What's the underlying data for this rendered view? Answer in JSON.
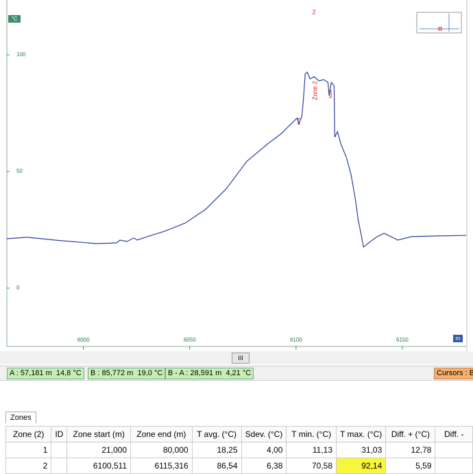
{
  "chart_data": {
    "type": "line",
    "y_unit": "°C",
    "x_unit": "m",
    "zone_marker": "2",
    "annotation": "Zone 2",
    "x": [
      5964,
      5973.7,
      5986.6,
      6005.9,
      6015.6,
      6017.2,
      6020.5,
      6023.7,
      6025.3,
      6030.1,
      6038.2,
      6047.9,
      6057.5,
      6067.2,
      6076.9,
      6086.6,
      6093.0,
      6097.9,
      6100.5,
      6101.4,
      6102.7,
      6103.4,
      6104.3,
      6105.3,
      6106.6,
      6108.5,
      6110.8,
      6113.0,
      6115.0,
      6115.6,
      6116.6,
      6117.9,
      6118.2,
      6119.5,
      6121.1,
      6123.7,
      6125.9,
      6127.9,
      6129.2,
      6130.8,
      6131.7,
      6135.0,
      6138.2,
      6141.4,
      6144.6,
      6147.9,
      6154.3,
      6167.2,
      6180.0
    ],
    "series": [
      {
        "color": "#2f3ea0",
        "values": [
          21.2,
          21.8,
          20.6,
          19.1,
          19.4,
          20.6,
          20.0,
          21.5,
          20.6,
          22.1,
          24.4,
          27.9,
          33.8,
          42.6,
          54.4,
          61.8,
          66.2,
          70.6,
          72.9,
          70.6,
          73.5,
          80.0,
          91.8,
          92.6,
          89.7,
          90.6,
          88.8,
          89.4,
          88.2,
          82.4,
          88.2,
          86.8,
          64.7,
          67.1,
          61.8,
          55.9,
          48.5,
          38.2,
          29.4,
          22.1,
          17.6,
          20.0,
          22.1,
          23.5,
          22.1,
          20.6,
          22.1,
          22.4,
          22.6
        ]
      }
    ],
    "xlim": [
      5964,
      6180
    ],
    "ylim": [
      -23.5,
      123.5
    ],
    "xticks": [
      6000,
      6050,
      6100,
      6150
    ],
    "yticks": [
      0,
      50,
      100
    ]
  },
  "status": {
    "a": "A : 57,181 m  14,8 °C",
    "b": "B : 85,772 m  19,0 °C",
    "ba": "B - A : 28,591 m  4,21 °C",
    "cursors": "Cursors : B"
  },
  "tab": "Zones",
  "table": {
    "headers": [
      "Zone (2)",
      "ID",
      "Zone start (m)",
      "Zone end (m)",
      "T avg. (°C)",
      "Sdev. (°C)",
      "T min. (°C)",
      "T max. (°C)",
      "Diff. + (°C)",
      "Diff. -"
    ],
    "rows": [
      [
        "1",
        null,
        "21,000",
        "80,000",
        "18,25",
        "4,00",
        "11,13",
        "31,03",
        "12,78",
        null
      ],
      [
        "2",
        null,
        "6100,511",
        "6115,316",
        "86,54",
        "6,38",
        "70,58",
        "92,14",
        "5,59",
        null
      ]
    ]
  }
}
